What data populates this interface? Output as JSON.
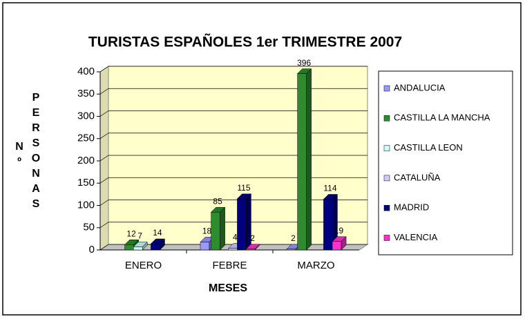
{
  "chart_data": {
    "type": "bar3d",
    "title": "TURISTAS ESPAÑOLES 1er TRIMESTRE 2007",
    "x_label": "MESES",
    "y_label": "Nº PERSONAS",
    "categories": [
      "ENERO",
      "FEBRE",
      "MARZO"
    ],
    "series": [
      {
        "name": "ANDALUCIA",
        "color": "#9999ff",
        "values": [
          null,
          18,
          2
        ]
      },
      {
        "name": "CASTILLA LA MANCHA",
        "color": "#2e8b2e",
        "values": [
          12,
          85,
          396
        ]
      },
      {
        "name": "CASTILLA LEON",
        "color": "#ccffff",
        "values": [
          7,
          null,
          null
        ]
      },
      {
        "name": "CATALUÑA",
        "color": "#ccccff",
        "values": [
          null,
          4,
          null
        ]
      },
      {
        "name": "MADRID",
        "color": "#000080",
        "values": [
          14,
          115,
          114
        ]
      },
      {
        "name": "VALENCIA",
        "color": "#ff33cc",
        "values": [
          null,
          2,
          19
        ]
      }
    ],
    "ylim": [
      0,
      400
    ],
    "yticks": [
      0,
      50,
      100,
      150,
      200,
      250,
      300,
      350,
      400
    ],
    "grid": true,
    "legend": "right"
  }
}
